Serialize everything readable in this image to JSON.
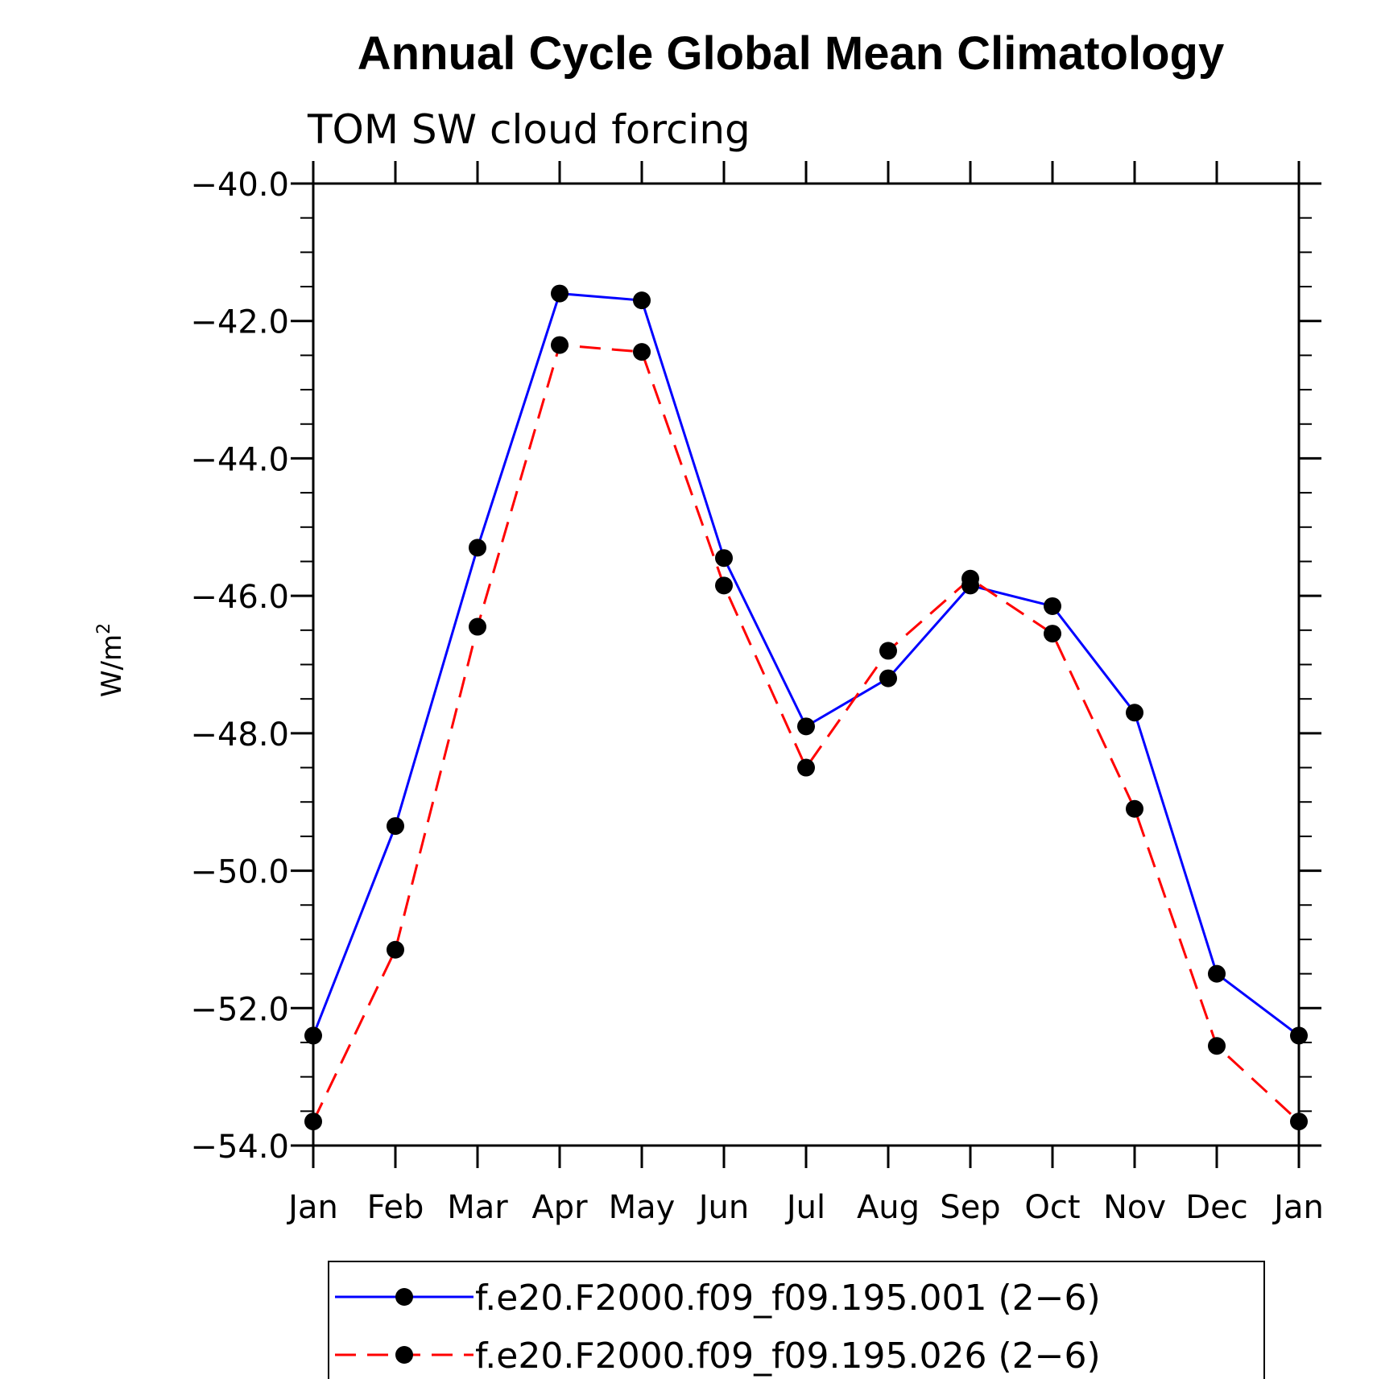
{
  "chart_data": {
    "type": "line",
    "title": "Annual Cycle Global Mean Climatology",
    "subtitle": "TOM SW cloud forcing",
    "ylabel": "W/m",
    "ylabel_superscript": "2",
    "categories": [
      "Jan",
      "Feb",
      "Mar",
      "Apr",
      "May",
      "Jun",
      "Jul",
      "Aug",
      "Sep",
      "Oct",
      "Nov",
      "Dec",
      "Jan"
    ],
    "ylim": [
      -54.0,
      -40.0
    ],
    "yticks": [
      "−40.0",
      "−42.0",
      "−44.0",
      "−46.0",
      "−48.0",
      "−50.0",
      "−52.0",
      "−54.0"
    ],
    "grid": false,
    "legend_position": "bottom",
    "series": [
      {
        "name": "f.e20.F2000.f09_f09.195.001 (2−6)",
        "color": "#0000ff",
        "dash": "solid",
        "values": [
          -52.4,
          -49.35,
          -45.3,
          -41.6,
          -41.7,
          -45.45,
          -47.9,
          -47.2,
          -45.85,
          -46.15,
          -47.7,
          -51.5,
          -52.4
        ]
      },
      {
        "name": "f.e20.F2000.f09_f09.195.026 (2−6)",
        "color": "#ff0000",
        "dash": "dashed",
        "values": [
          -53.65,
          -51.15,
          -46.45,
          -42.35,
          -42.45,
          -45.85,
          -48.5,
          -46.8,
          -45.75,
          -46.55,
          -49.1,
          -52.55,
          -53.65
        ]
      }
    ]
  }
}
